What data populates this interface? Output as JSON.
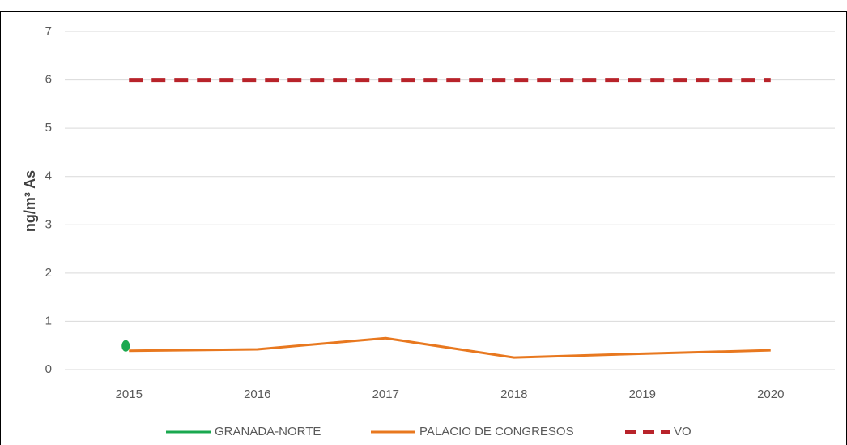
{
  "chart_data": {
    "type": "line",
    "y_label": "ng/m³ As",
    "categories": [
      "2015",
      "2016",
      "2017",
      "2018",
      "2019",
      "2020"
    ],
    "series": [
      {
        "name": "GRANADA-NORTE",
        "color": "#1aa84f",
        "values": [
          0.49,
          null,
          null,
          null,
          null,
          null
        ]
      },
      {
        "name": "PALACIO DE CONGRESOS",
        "color": "#e8781f",
        "values": [
          0.39,
          0.42,
          0.65,
          0.25,
          0.33,
          0.4
        ]
      },
      {
        "name": "VO",
        "color": "#b8232a",
        "dashed": true,
        "values": [
          6,
          6,
          6,
          6,
          6,
          6
        ]
      }
    ],
    "ylim": [
      0,
      7
    ],
    "yticks": [
      0,
      1,
      2,
      3,
      4,
      5,
      6,
      7
    ],
    "grid": true,
    "legend": "bottom"
  }
}
